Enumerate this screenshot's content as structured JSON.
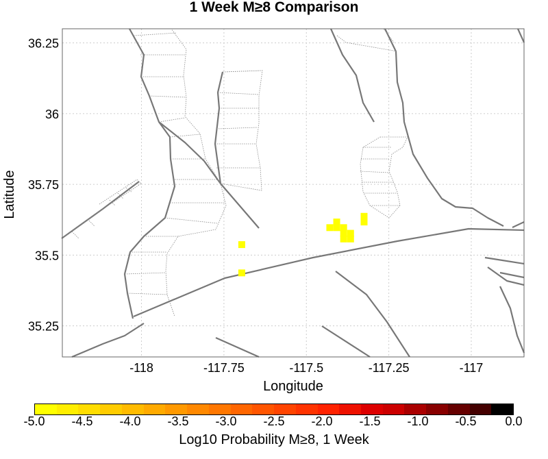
{
  "title": "1 Week M≥8 Comparison",
  "map": {
    "xlabel": "Longitude",
    "ylabel": "Latitude",
    "xlim": [
      -118.24,
      -116.84
    ],
    "ylim": [
      35.14,
      36.3
    ],
    "x_ticks": [
      {
        "value": -118,
        "label": "-118"
      },
      {
        "value": -117.75,
        "label": "-117.75"
      },
      {
        "value": -117.5,
        "label": "-117.5"
      },
      {
        "value": -117.25,
        "label": "-117.25"
      },
      {
        "value": -117,
        "label": "-117"
      }
    ],
    "y_ticks": [
      {
        "value": 36.25,
        "label": "36.25"
      },
      {
        "value": 36,
        "label": "36"
      },
      {
        "value": 35.75,
        "label": "35.75"
      },
      {
        "value": 35.5,
        "label": "35.5"
      },
      {
        "value": 35.25,
        "label": "35.25"
      }
    ],
    "grid": true,
    "probability_cells": [
      {
        "lon": -117.696,
        "lat": 35.537,
        "color": "#ffff00"
      },
      {
        "lon": -117.696,
        "lat": 35.437,
        "color": "#ffff00"
      },
      {
        "lon": -117.429,
        "lat": 35.597,
        "color": "#ffff00"
      },
      {
        "lon": -117.408,
        "lat": 35.597,
        "color": "#ffff00"
      },
      {
        "lon": -117.408,
        "lat": 35.617,
        "color": "#ffff00"
      },
      {
        "lon": -117.387,
        "lat": 35.597,
        "color": "#ffff00"
      },
      {
        "lon": -117.387,
        "lat": 35.577,
        "color": "#ffff00"
      },
      {
        "lon": -117.387,
        "lat": 35.557,
        "color": "#ffff00"
      },
      {
        "lon": -117.366,
        "lat": 35.557,
        "color": "#ffff00"
      },
      {
        "lon": -117.366,
        "lat": 35.577,
        "color": "#ffff00"
      },
      {
        "lon": -117.325,
        "lat": 35.617,
        "color": "#ffff00"
      },
      {
        "lon": -117.325,
        "lat": 35.637,
        "color": "#ffff00"
      }
    ]
  },
  "colorbar": {
    "colors": [
      "#ffff00",
      "#ffee00",
      "#ffdd00",
      "#ffcc00",
      "#ffbb00",
      "#ffaa00",
      "#ff9900",
      "#ff8800",
      "#ff7700",
      "#ff6600",
      "#ff5500",
      "#ff4400",
      "#ff3300",
      "#ff2200",
      "#ee1100",
      "#dd0000",
      "#cc0000",
      "#aa0000",
      "#880000",
      "#660000",
      "#440000",
      "#000000"
    ],
    "tick_labels": [
      "-5.0",
      "-4.5",
      "-4.0",
      "-3.5",
      "-3.0",
      "-2.5",
      "-2.0",
      "-1.5",
      "-1.0",
      "-0.5",
      "0.0"
    ],
    "min": -5.0,
    "max": 0.0,
    "title": "Log10 Probability M≥8, 1 Week"
  }
}
